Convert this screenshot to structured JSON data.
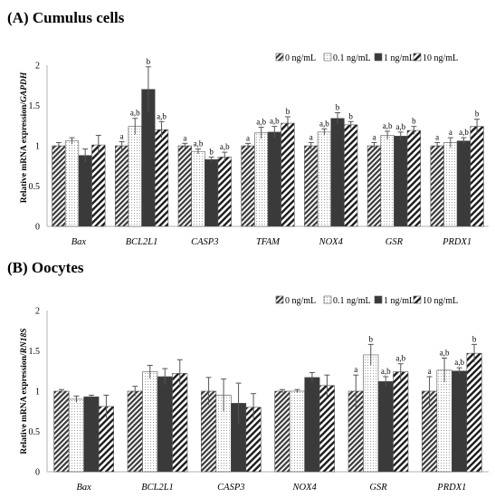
{
  "chart_data": [
    {
      "type": "bar",
      "panel_title": "(A) Cumulus cells",
      "ylabel_prefix": "Relative mRNA expression/",
      "ylabel_gene": "GAPDH",
      "ylim": [
        0,
        2
      ],
      "yticks": [
        "0",
        "0.5",
        "1",
        "1.5",
        "2"
      ],
      "legend_position": "top-right",
      "categories": [
        "Bax",
        "BCL2L1",
        "CASP3",
        "TFAM",
        "NOX4",
        "GSR",
        "PRDX1"
      ],
      "series": [
        {
          "name": "0 ng/mL",
          "values": [
            1.0,
            1.0,
            1.0,
            1.0,
            1.0,
            1.0,
            1.0
          ],
          "errors": [
            0.04,
            0.05,
            0.03,
            0.03,
            0.04,
            0.04,
            0.04
          ],
          "labels": [
            "",
            "a",
            "a",
            "a",
            "a",
            "a",
            "a"
          ]
        },
        {
          "name": "0.1 ng/mL",
          "values": [
            1.06,
            1.24,
            0.93,
            1.16,
            1.17,
            1.13,
            1.04
          ],
          "errors": [
            0.04,
            0.1,
            0.03,
            0.07,
            0.04,
            0.05,
            0.06
          ],
          "labels": [
            "",
            "a,b",
            "a,b",
            "a,b",
            "a,b",
            "a,b",
            "a"
          ]
        },
        {
          "name": "1 ng/mL",
          "values": [
            0.88,
            1.7,
            0.83,
            1.17,
            1.34,
            1.12,
            1.06
          ],
          "errors": [
            0.08,
            0.28,
            0.03,
            0.07,
            0.07,
            0.05,
            0.04
          ],
          "labels": [
            "",
            "b",
            "b",
            "a,b",
            "b",
            "a,b",
            "a,b"
          ]
        },
        {
          "name": "10 ng/mL",
          "values": [
            1.01,
            1.2,
            0.86,
            1.28,
            1.26,
            1.19,
            1.24
          ],
          "errors": [
            0.12,
            0.1,
            0.06,
            0.08,
            0.04,
            0.05,
            0.09
          ],
          "labels": [
            "",
            "a,b",
            "a,b",
            "b",
            "b",
            "b",
            "b"
          ]
        }
      ]
    },
    {
      "type": "bar",
      "panel_title": "(B) Oocytes",
      "ylabel_prefix": "Relative mRNA expression/",
      "ylabel_gene": "RN18S",
      "ylim": [
        0,
        2
      ],
      "yticks": [
        "0",
        "0.5",
        "1",
        "1.5",
        "2"
      ],
      "legend_position": "top-right",
      "categories": [
        "Bax",
        "BCL2L1",
        "CASP3",
        "NOX4",
        "GSR",
        "PRDX1"
      ],
      "series": [
        {
          "name": "0 ng/mL",
          "values": [
            1.0,
            1.0,
            1.0,
            1.0,
            1.0,
            1.0
          ],
          "errors": [
            0.02,
            0.06,
            0.17,
            0.02,
            0.2,
            0.18
          ],
          "labels": [
            "",
            "",
            "",
            "",
            "a",
            "a"
          ]
        },
        {
          "name": "0.1 ng/mL",
          "values": [
            0.9,
            1.24,
            0.95,
            1.0,
            1.45,
            1.26
          ],
          "errors": [
            0.04,
            0.08,
            0.2,
            0.02,
            0.13,
            0.15
          ],
          "labels": [
            "",
            "",
            "",
            "",
            "b",
            "a,b"
          ]
        },
        {
          "name": "1 ng/mL",
          "values": [
            0.93,
            1.18,
            0.85,
            1.17,
            1.12,
            1.25
          ],
          "errors": [
            0.02,
            0.1,
            0.25,
            0.06,
            0.06,
            0.04
          ],
          "labels": [
            "",
            "",
            "",
            "",
            "a,b",
            "a,b"
          ]
        },
        {
          "name": "10 ng/mL",
          "values": [
            0.81,
            1.22,
            0.8,
            1.07,
            1.24,
            1.47
          ],
          "errors": [
            0.14,
            0.17,
            0.17,
            0.13,
            0.1,
            0.11
          ],
          "labels": [
            "",
            "",
            "",
            "",
            "a,b",
            "b"
          ]
        }
      ]
    }
  ]
}
